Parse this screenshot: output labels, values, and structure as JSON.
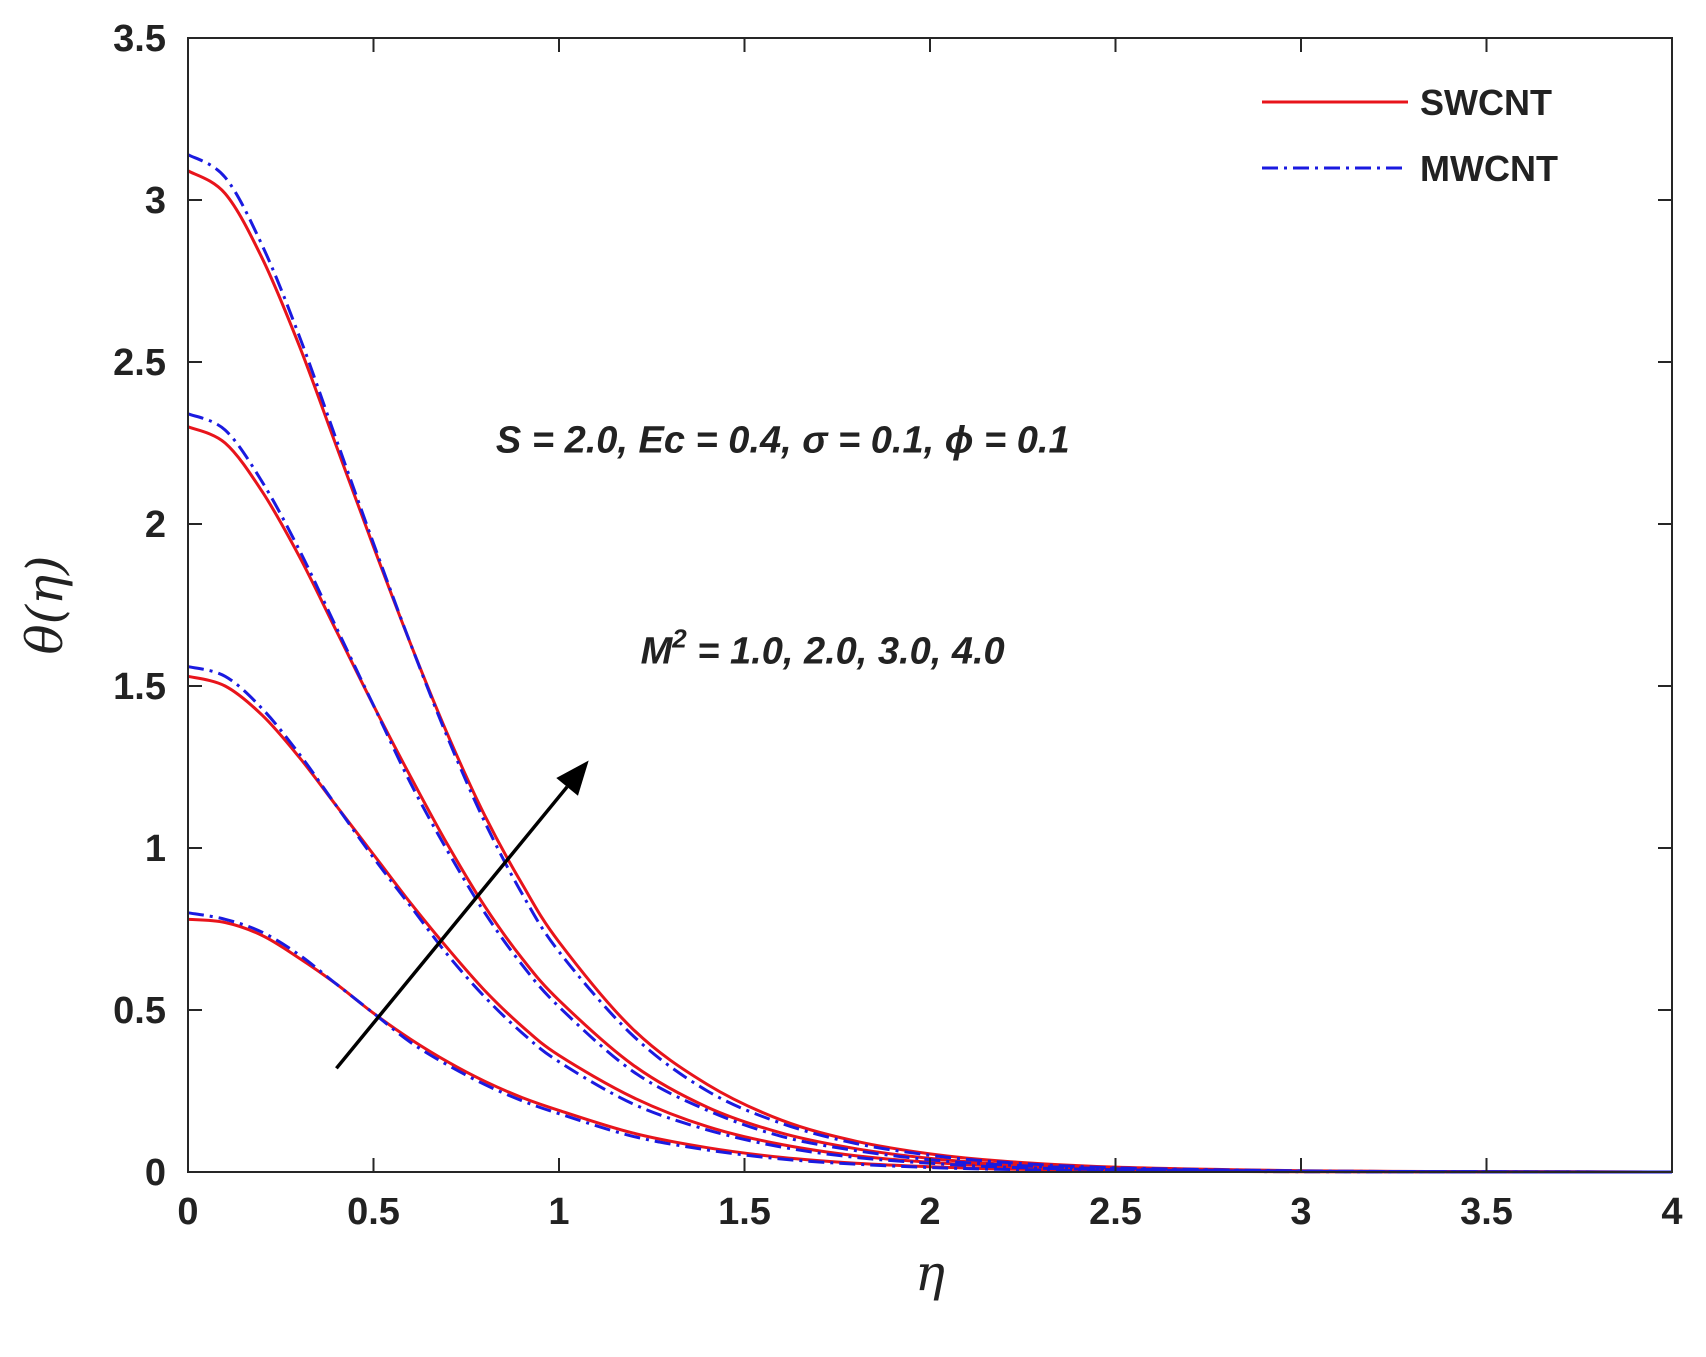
{
  "chart_data": {
    "type": "line",
    "title": "",
    "xlabel": "η",
    "ylabel": "θ(η)",
    "xlim": [
      0,
      4
    ],
    "ylim": [
      0,
      3.5
    ],
    "x_ticks": [
      "0",
      "0.5",
      "1",
      "1.5",
      "2",
      "2.5",
      "3",
      "3.5",
      "4"
    ],
    "y_ticks": [
      "0",
      "0.5",
      "1",
      "1.5",
      "2",
      "2.5",
      "3",
      "3.5"
    ],
    "grid": false,
    "legend": {
      "position": "top-right",
      "entries": [
        {
          "label": "SWCNT",
          "color": "#e8141b",
          "style": "solid"
        },
        {
          "label": "MWCNT",
          "color": "#1a1ae0",
          "style": "dash-dot"
        }
      ]
    },
    "annotations": [
      {
        "text": "S = 2.0, Ec = 0.4, σ = 0.1, ϕ = 0.1",
        "x": 0.83,
        "y": 2.22
      },
      {
        "text_prefix": "M",
        "sup": "2",
        "text_suffix": " = 1.0, 2.0, 3.0, 4.0",
        "x": 1.22,
        "y": 1.57
      }
    ],
    "arrow": {
      "from": [
        0.4,
        0.32
      ],
      "to": [
        1.08,
        1.27
      ],
      "color": "#000000"
    },
    "x": [
      0,
      0.1,
      0.2,
      0.3,
      0.4,
      0.5,
      0.6,
      0.7,
      0.8,
      0.9,
      1.0,
      1.2,
      1.4,
      1.6,
      1.8,
      2.0,
      2.2,
      2.5,
      3.0,
      3.5,
      4.0
    ],
    "series": [
      {
        "name": "SWCNT",
        "color": "#e8141b",
        "style": "solid",
        "curves": [
          [
            0.78,
            0.77,
            0.73,
            0.66,
            0.58,
            0.49,
            0.41,
            0.34,
            0.28,
            0.23,
            0.19,
            0.12,
            0.075,
            0.045,
            0.027,
            0.016,
            0.009,
            0.004,
            0.001,
            0.0003,
            0.0
          ],
          [
            1.53,
            1.5,
            1.41,
            1.28,
            1.13,
            0.98,
            0.83,
            0.69,
            0.56,
            0.45,
            0.36,
            0.23,
            0.14,
            0.085,
            0.05,
            0.03,
            0.017,
            0.008,
            0.002,
            0.0005,
            0.0
          ],
          [
            2.3,
            2.25,
            2.1,
            1.9,
            1.67,
            1.44,
            1.22,
            1.01,
            0.82,
            0.66,
            0.53,
            0.33,
            0.2,
            0.12,
            0.072,
            0.042,
            0.024,
            0.011,
            0.003,
            0.001,
            0.0
          ],
          [
            3.09,
            3.02,
            2.82,
            2.55,
            2.24,
            1.93,
            1.63,
            1.35,
            1.1,
            0.89,
            0.71,
            0.44,
            0.27,
            0.16,
            0.095,
            0.056,
            0.033,
            0.015,
            0.004,
            0.001,
            0.0
          ]
        ]
      },
      {
        "name": "MWCNT",
        "color": "#1a1ae0",
        "style": "dash-dot",
        "curves": [
          [
            0.8,
            0.78,
            0.74,
            0.67,
            0.58,
            0.49,
            0.4,
            0.33,
            0.27,
            0.22,
            0.18,
            0.11,
            0.068,
            0.04,
            0.024,
            0.014,
            0.008,
            0.0035,
            0.0009,
            0.0002,
            0.0
          ],
          [
            1.56,
            1.53,
            1.43,
            1.29,
            1.13,
            0.97,
            0.82,
            0.67,
            0.54,
            0.43,
            0.34,
            0.21,
            0.13,
            0.077,
            0.045,
            0.027,
            0.015,
            0.007,
            0.002,
            0.0004,
            0.0
          ],
          [
            2.34,
            2.29,
            2.13,
            1.92,
            1.68,
            1.44,
            1.2,
            0.99,
            0.8,
            0.64,
            0.51,
            0.31,
            0.19,
            0.11,
            0.066,
            0.038,
            0.022,
            0.01,
            0.0025,
            0.0006,
            0.0
          ],
          [
            3.14,
            3.07,
            2.86,
            2.58,
            2.26,
            1.94,
            1.63,
            1.34,
            1.08,
            0.86,
            0.68,
            0.42,
            0.25,
            0.15,
            0.088,
            0.052,
            0.03,
            0.013,
            0.0035,
            0.0008,
            0.0
          ]
        ]
      }
    ]
  }
}
